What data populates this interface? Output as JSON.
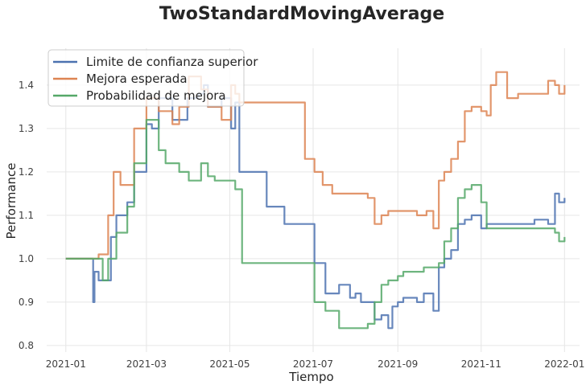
{
  "chart_data": {
    "type": "line",
    "title": "TwoStandardMovingAverage",
    "xlabel": "Tiempo",
    "ylabel": "Performance",
    "x_ticks": [
      "2021-01",
      "2021-03",
      "2021-05",
      "2021-07",
      "2021-09",
      "2021-11",
      "2022-01"
    ],
    "y_ticks": [
      "0.8",
      "0.9",
      "1.0",
      "1.1",
      "1.2",
      "1.3",
      "1.4"
    ],
    "xlim": [
      "2020-12-18",
      "2022-01-12"
    ],
    "ylim": [
      0.785,
      1.485
    ],
    "grid": true,
    "legend_position": "top-left",
    "series": [
      {
        "name": "Limite de confianza superior",
        "color": "#4c72b0",
        "x": [
          "2021-01-01",
          "2021-01-19",
          "2021-01-21",
          "2021-01-22",
          "2021-01-25",
          "2021-02-03",
          "2021-02-07",
          "2021-02-15",
          "2021-02-20",
          "2021-03-01",
          "2021-03-05",
          "2021-03-10",
          "2021-03-20",
          "2021-03-31",
          "2021-04-08",
          "2021-04-12",
          "2021-04-15",
          "2021-04-25",
          "2021-05-02",
          "2021-05-05",
          "2021-05-08",
          "2021-05-12",
          "2021-05-25",
          "2021-05-28",
          "2021-06-10",
          "2021-06-25",
          "2021-07-02",
          "2021-07-05",
          "2021-07-10",
          "2021-07-20",
          "2021-07-28",
          "2021-08-01",
          "2021-08-05",
          "2021-08-15",
          "2021-08-20",
          "2021-08-25",
          "2021-08-28",
          "2021-09-01",
          "2021-09-05",
          "2021-09-15",
          "2021-09-20",
          "2021-09-27",
          "2021-10-01",
          "2021-10-05",
          "2021-10-10",
          "2021-10-15",
          "2021-10-20",
          "2021-10-25",
          "2021-11-01",
          "2021-11-05",
          "2021-11-10",
          "2021-11-20",
          "2021-12-01",
          "2021-12-10",
          "2021-12-20",
          "2021-12-25",
          "2021-12-28",
          "2022-01-01"
        ],
        "values": [
          1.0,
          1.0,
          0.9,
          0.97,
          0.95,
          1.05,
          1.1,
          1.13,
          1.2,
          1.31,
          1.3,
          1.37,
          1.32,
          1.37,
          1.38,
          1.4,
          1.35,
          1.37,
          1.3,
          1.36,
          1.2,
          1.2,
          1.2,
          1.12,
          1.08,
          1.08,
          0.99,
          0.99,
          0.92,
          0.94,
          0.91,
          0.92,
          0.9,
          0.86,
          0.87,
          0.84,
          0.89,
          0.9,
          0.91,
          0.9,
          0.92,
          0.88,
          0.98,
          1.0,
          1.02,
          1.08,
          1.09,
          1.1,
          1.07,
          1.08,
          1.08,
          1.08,
          1.08,
          1.09,
          1.08,
          1.15,
          1.13,
          1.14
        ]
      },
      {
        "name": "Mejora esperada",
        "color": "#dd8452",
        "x": [
          "2021-01-01",
          "2021-01-19",
          "2021-01-25",
          "2021-02-01",
          "2021-02-05",
          "2021-02-10",
          "2021-02-15",
          "2021-02-20",
          "2021-03-01",
          "2021-03-05",
          "2021-03-10",
          "2021-03-20",
          "2021-03-25",
          "2021-04-01",
          "2021-04-10",
          "2021-04-15",
          "2021-04-25",
          "2021-05-02",
          "2021-05-05",
          "2021-05-08",
          "2021-05-15",
          "2021-06-01",
          "2021-06-25",
          "2021-07-02",
          "2021-07-08",
          "2021-07-15",
          "2021-07-20",
          "2021-08-01",
          "2021-08-10",
          "2021-08-15",
          "2021-08-20",
          "2021-08-25",
          "2021-09-01",
          "2021-09-05",
          "2021-09-15",
          "2021-09-22",
          "2021-09-27",
          "2021-10-01",
          "2021-10-05",
          "2021-10-10",
          "2021-10-15",
          "2021-10-20",
          "2021-10-25",
          "2021-11-01",
          "2021-11-05",
          "2021-11-08",
          "2021-11-12",
          "2021-11-20",
          "2021-11-28",
          "2021-12-01",
          "2021-12-10",
          "2021-12-20",
          "2021-12-25",
          "2021-12-28",
          "2022-01-01"
        ],
        "values": [
          1.0,
          1.0,
          1.01,
          1.1,
          1.2,
          1.17,
          1.17,
          1.3,
          1.37,
          1.37,
          1.34,
          1.31,
          1.35,
          1.42,
          1.39,
          1.35,
          1.32,
          1.4,
          1.38,
          1.36,
          1.36,
          1.36,
          1.23,
          1.2,
          1.17,
          1.15,
          1.15,
          1.15,
          1.14,
          1.08,
          1.1,
          1.11,
          1.11,
          1.11,
          1.1,
          1.11,
          1.07,
          1.18,
          1.2,
          1.23,
          1.27,
          1.34,
          1.35,
          1.34,
          1.33,
          1.4,
          1.43,
          1.37,
          1.38,
          1.38,
          1.38,
          1.41,
          1.4,
          1.38,
          1.4
        ]
      },
      {
        "name": "Probabilidad de mejora",
        "color": "#55a868",
        "x": [
          "2021-01-01",
          "2021-01-19",
          "2021-01-25",
          "2021-01-28",
          "2021-02-01",
          "2021-02-07",
          "2021-02-15",
          "2021-02-20",
          "2021-03-01",
          "2021-03-05",
          "2021-03-10",
          "2021-03-15",
          "2021-03-25",
          "2021-04-01",
          "2021-04-10",
          "2021-04-15",
          "2021-04-20",
          "2021-05-01",
          "2021-05-05",
          "2021-05-10",
          "2021-05-25",
          "2021-06-10",
          "2021-06-25",
          "2021-07-02",
          "2021-07-10",
          "2021-07-20",
          "2021-08-01",
          "2021-08-10",
          "2021-08-15",
          "2021-08-20",
          "2021-08-25",
          "2021-09-01",
          "2021-09-05",
          "2021-09-10",
          "2021-09-20",
          "2021-09-27",
          "2021-10-01",
          "2021-10-05",
          "2021-10-10",
          "2021-10-15",
          "2021-10-20",
          "2021-10-25",
          "2021-11-01",
          "2021-11-05",
          "2021-11-10",
          "2021-11-20",
          "2021-12-01",
          "2021-12-10",
          "2021-12-20",
          "2021-12-25",
          "2021-12-28",
          "2022-01-01"
        ],
        "values": [
          1.0,
          1.0,
          1.0,
          0.95,
          1.0,
          1.06,
          1.12,
          1.22,
          1.32,
          1.32,
          1.25,
          1.22,
          1.2,
          1.18,
          1.22,
          1.19,
          1.18,
          1.18,
          1.16,
          0.99,
          0.99,
          0.99,
          0.99,
          0.9,
          0.88,
          0.84,
          0.84,
          0.85,
          0.9,
          0.94,
          0.95,
          0.96,
          0.97,
          0.97,
          0.98,
          0.98,
          0.99,
          1.04,
          1.07,
          1.14,
          1.16,
          1.17,
          1.13,
          1.07,
          1.07,
          1.07,
          1.07,
          1.07,
          1.07,
          1.06,
          1.04,
          1.05
        ]
      }
    ]
  }
}
